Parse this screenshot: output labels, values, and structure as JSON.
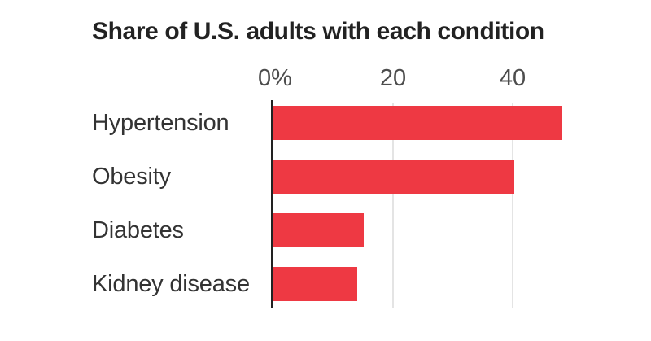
{
  "chart_data": {
    "type": "bar",
    "orientation": "horizontal",
    "title": "Share of U.S. adults with each condition",
    "categories": [
      "Hypertension",
      "Obesity",
      "Diabetes",
      "Kidney disease"
    ],
    "values": [
      48,
      40,
      15,
      14
    ],
    "unit": "%",
    "x_ticks": [
      "0%",
      "20",
      "40"
    ],
    "x_tick_values": [
      0,
      20,
      40
    ],
    "xlim": [
      0,
      55
    ],
    "grid": true,
    "legend": false
  },
  "colors": {
    "bar": "#ee3943",
    "title": "#222222",
    "label": "#333333",
    "tick": "#4d4d4d",
    "axis": "#222222",
    "grid": "#e4e4e4",
    "bg": "#ffffff"
  }
}
